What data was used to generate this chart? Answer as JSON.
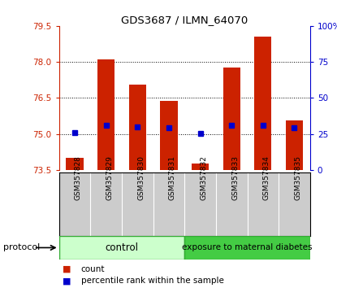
{
  "title": "GDS3687 / ILMN_64070",
  "categories": [
    "GSM357828",
    "GSM357829",
    "GSM357830",
    "GSM357831",
    "GSM357832",
    "GSM357833",
    "GSM357834",
    "GSM357835"
  ],
  "bar_tops": [
    74.0,
    78.12,
    77.05,
    76.38,
    73.75,
    77.78,
    79.05,
    75.55
  ],
  "bar_base": 73.5,
  "percentile_values": [
    75.07,
    75.35,
    75.3,
    75.27,
    75.02,
    75.35,
    75.35,
    75.27
  ],
  "ylim_left": [
    73.5,
    79.5
  ],
  "ylim_right": [
    0,
    100
  ],
  "yticks_left": [
    73.5,
    75.0,
    76.5,
    78.0,
    79.5
  ],
  "yticks_right": [
    0,
    25,
    50,
    75,
    100
  ],
  "ytick_labels_right": [
    "0",
    "25",
    "50",
    "75",
    "100%"
  ],
  "bar_color": "#cc2200",
  "percentile_color": "#0000cc",
  "control_color": "#ccffcc",
  "diabetes_color": "#44cc44",
  "label_bg_color": "#cccccc",
  "legend_count_label": "count",
  "legend_percentile_label": "percentile rank within the sample",
  "protocol_label": "protocol",
  "control_label": "control",
  "diabetes_label": "exposure to maternal diabetes",
  "n_control": 4,
  "n_total": 8
}
